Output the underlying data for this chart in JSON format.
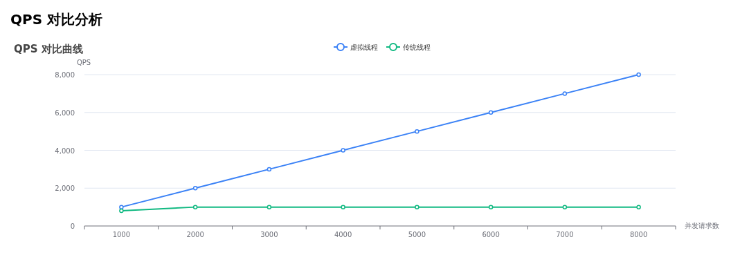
{
  "chart_data": {
    "type": "line",
    "title": "QPS 对比分析",
    "subtitle": "QPS 对比曲线",
    "xlabel": "并发请求数",
    "ylabel": "QPS",
    "categories": [
      "1000",
      "2000",
      "3000",
      "4000",
      "5000",
      "6000",
      "7000",
      "8000"
    ],
    "series": [
      {
        "name": "虚拟线程",
        "color": "#3b82f6",
        "values": [
          1000,
          2000,
          3000,
          4000,
          5000,
          6000,
          7000,
          8000
        ]
      },
      {
        "name": "传统线程",
        "color": "#10b981",
        "values": [
          800,
          1000,
          1000,
          1000,
          1000,
          1000,
          1000,
          1000
        ]
      }
    ],
    "ylim": [
      0,
      8000
    ],
    "yticks": [
      0,
      {
        "value": 2000,
        "label": "2,000"
      },
      {
        "value": 4000,
        "label": "4,000"
      },
      {
        "value": 6000,
        "label": "6,000"
      },
      {
        "value": 8000,
        "label": "8,000"
      }
    ],
    "grid": "y",
    "legend": "top",
    "marker": "circle",
    "line_style": "solid"
  }
}
